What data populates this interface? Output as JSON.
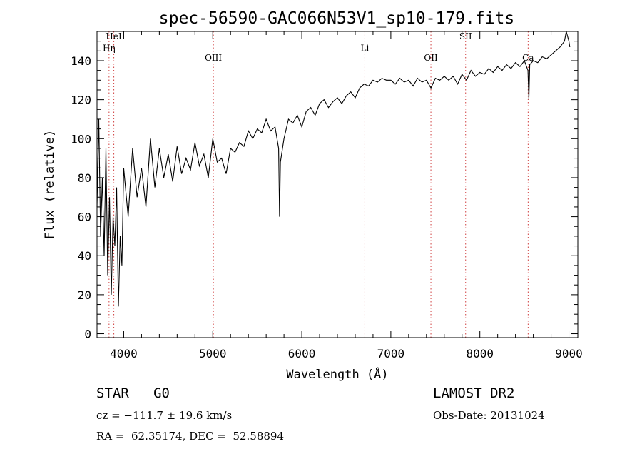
{
  "chart_data": {
    "type": "line",
    "title": "spec-56590-GAC066N53V1_sp10-179.fits",
    "xlabel": "Wavelength (Å)",
    "ylabel": "Flux (relative)",
    "xlim": [
      3700,
      9100
    ],
    "ylim": [
      -2,
      155
    ],
    "xticks": [
      4000,
      5000,
      6000,
      7000,
      8000,
      9000
    ],
    "xtick_labels": [
      "4000",
      "5000",
      "6000",
      "7000",
      "8000",
      "9000"
    ],
    "yticks": [
      0,
      20,
      40,
      60,
      80,
      100,
      120,
      140
    ],
    "ytick_labels": [
      "0",
      "20",
      "40",
      "60",
      "80",
      "100",
      "120",
      "140"
    ],
    "grid": false,
    "line_color": "#000000",
    "marker_line_color": "#d04040",
    "series": [
      {
        "x": [
          3700,
          3720,
          3740,
          3760,
          3780,
          3800,
          3820,
          3840,
          3860,
          3880,
          3900,
          3920,
          3940,
          3960,
          3980,
          4000,
          4050,
          4100,
          4150,
          4200,
          4250,
          4300,
          4350,
          4400,
          4450,
          4500,
          4550,
          4600,
          4650,
          4700,
          4750,
          4800,
          4850,
          4900,
          4950,
          5000,
          5050,
          5100,
          5150,
          5200,
          5250,
          5300,
          5350,
          5400,
          5450,
          5500,
          5550,
          5600,
          5650,
          5700,
          5740,
          5750,
          5760,
          5800,
          5850,
          5900,
          5950,
          6000,
          6050,
          6100,
          6150,
          6200,
          6250,
          6300,
          6350,
          6400,
          6450,
          6500,
          6550,
          6600,
          6650,
          6700,
          6750,
          6800,
          6850,
          6900,
          6950,
          7000,
          7050,
          7100,
          7150,
          7200,
          7250,
          7300,
          7350,
          7400,
          7450,
          7500,
          7550,
          7600,
          7650,
          7700,
          7750,
          7800,
          7850,
          7900,
          7950,
          8000,
          8050,
          8100,
          8150,
          8200,
          8250,
          8300,
          8350,
          8400,
          8450,
          8500,
          8540,
          8550,
          8560,
          8600,
          8650,
          8700,
          8750,
          8800,
          8850,
          8900,
          8950,
          8970,
          9000,
          9010
        ],
        "y": [
          65,
          110,
          50,
          80,
          40,
          95,
          30,
          70,
          20,
          60,
          45,
          75,
          14,
          50,
          35,
          85,
          60,
          95,
          70,
          85,
          65,
          100,
          75,
          95,
          80,
          92,
          78,
          96,
          82,
          90,
          84,
          98,
          86,
          92,
          80,
          100,
          88,
          90,
          82,
          95,
          93,
          98,
          96,
          104,
          100,
          105,
          103,
          110,
          104,
          106,
          95,
          60,
          88,
          100,
          110,
          108,
          112,
          106,
          114,
          116,
          112,
          118,
          120,
          116,
          119,
          121,
          118,
          122,
          124,
          121,
          126,
          128,
          127,
          130,
          129,
          131,
          130,
          130,
          128,
          131,
          129,
          130,
          127,
          131,
          129,
          130,
          126,
          131,
          130,
          132,
          130,
          132,
          128,
          133,
          130,
          135,
          132,
          134,
          133,
          136,
          134,
          137,
          135,
          138,
          136,
          139,
          137,
          140,
          135,
          120,
          138,
          140,
          139,
          142,
          141,
          143,
          145,
          147,
          150,
          155,
          150,
          147
        ]
      }
    ],
    "line_markers": [
      {
        "label": "HeI",
        "x": 3889,
        "label_y": 151
      },
      {
        "label": "Hη",
        "x": 3835,
        "label_y": 145
      },
      {
        "label": "OIII",
        "x": 5007,
        "label_y": 140
      },
      {
        "label": "Li",
        "x": 6708,
        "label_y": 145
      },
      {
        "label": "OII",
        "x": 7450,
        "label_y": 140
      },
      {
        "label": "SII",
        "x": 7840,
        "label_y": 151
      },
      {
        "label": "Ca",
        "x": 8542,
        "label_y": 140
      }
    ]
  },
  "info": {
    "object_type": "STAR   G0",
    "survey": "LAMOST DR2",
    "cz": "cz = −111.7 ± 19.6 km/s",
    "obs_date": "Obs-Date: 20131024",
    "coords": "RA =  62.35174, DEC =  52.58894"
  }
}
